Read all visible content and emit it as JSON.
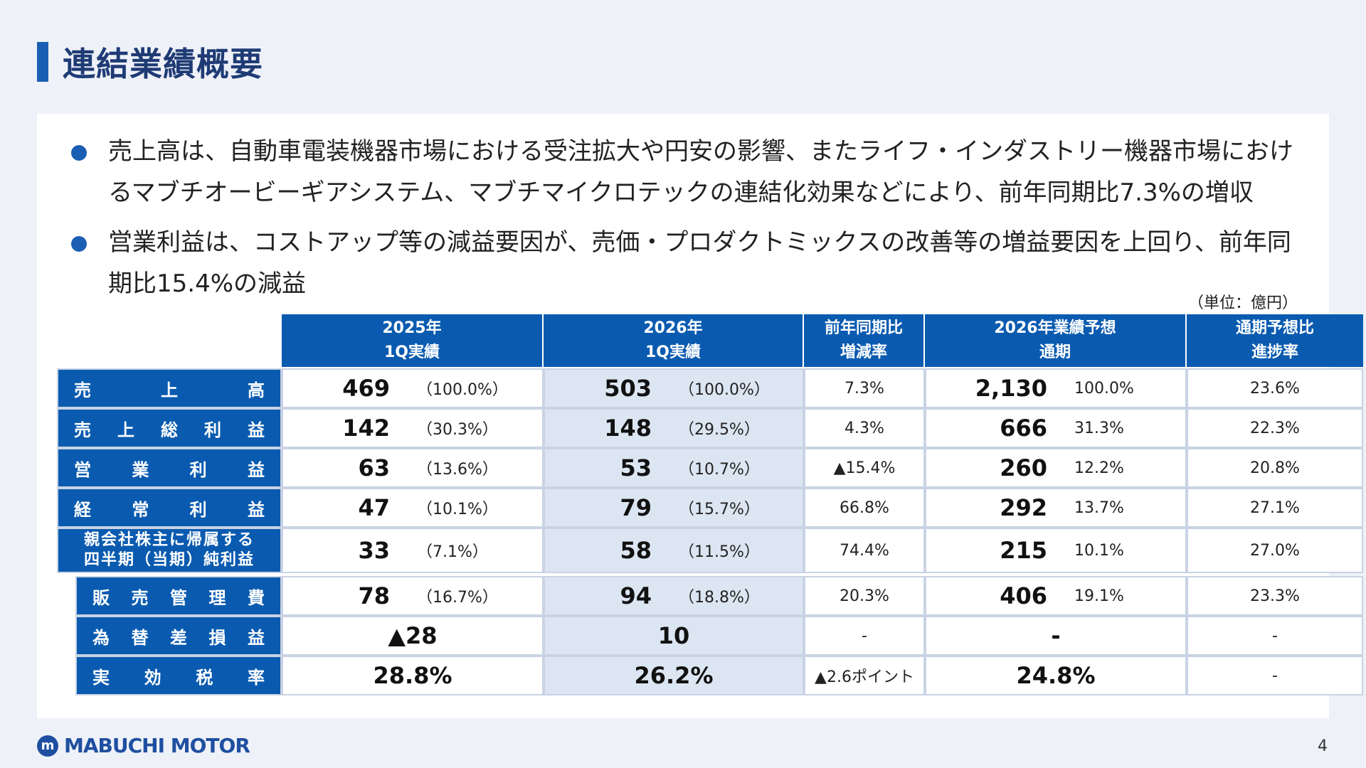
{
  "title": "連結業績概要",
  "bullets": [
    {
      "line1": "売上高は、自動車電装機器市場における受注拡大や円安の影響、またライフ・インダストリー機器市場におけ",
      "line2": "るマブチオービーギアシステム、マブチマイクロテックの連結化効果などにより、前年同期比7.3%の増収"
    },
    {
      "line1": "営業利益は、コストアップ等の減益要因が、売価・プロダクトミックスの改善等の増益要因を上回り、前年同",
      "line2": "期比15.4%の減益"
    }
  ],
  "unit": "（単位：億円）",
  "headers": [
    {
      "l1": "2025年",
      "l2": "1Q実績"
    },
    {
      "l1": "2026年",
      "l2": "1Q実績"
    },
    {
      "l1": "前年同期比",
      "l2": "増減率"
    },
    {
      "l1": "2026年業績予想",
      "l2": "通期"
    },
    {
      "l1": "通期予想比",
      "l2": "進捗率"
    }
  ],
  "rows": [
    {
      "label_chars": [
        "売",
        "上",
        "高"
      ],
      "v25": "469",
      "p25": "（100.0%）",
      "v26": "503",
      "p26": "（100.0%）",
      "yoy": "7.3%",
      "fc": "2,130",
      "fcp": "100.0%",
      "prog": "23.6%"
    },
    {
      "label_chars": [
        "売",
        "上",
        "総",
        "利",
        "益"
      ],
      "v25": "142",
      "p25": "（30.3%）",
      "v26": "148",
      "p26": "（29.5%）",
      "yoy": "4.3%",
      "fc": "666",
      "fcp": "31.3%",
      "prog": "22.3%"
    },
    {
      "label_chars": [
        "営",
        "業",
        "利",
        "益"
      ],
      "v25": "63",
      "p25": "（13.6%）",
      "v26": "53",
      "p26": "（10.7%）",
      "yoy": "▲15.4%",
      "fc": "260",
      "fcp": "12.2%",
      "prog": "20.8%"
    },
    {
      "label_chars": [
        "経",
        "常",
        "利",
        "益"
      ],
      "v25": "47",
      "p25": "（10.1%）",
      "v26": "79",
      "p26": "（15.7%）",
      "yoy": "66.8%",
      "fc": "292",
      "fcp": "13.7%",
      "prog": "27.1%"
    },
    {
      "label_l1": "親会社株主に帰属する",
      "label_l2": "四半期（当期）純利益",
      "v25": "33",
      "p25": "（7.1%）",
      "v26": "58",
      "p26": "（11.5%）",
      "yoy": "74.4%",
      "fc": "215",
      "fcp": "10.1%",
      "prog": "27.0%"
    }
  ],
  "rows2": [
    {
      "label_chars": [
        "販",
        "売",
        "管",
        "理",
        "費"
      ],
      "v25": "78",
      "p25": "（16.7%）",
      "v26": "94",
      "p26": "（18.8%）",
      "yoy": "20.3%",
      "fc": "406",
      "fcp": "19.1%",
      "prog": "23.3%"
    },
    {
      "label_chars": [
        "為",
        "替",
        "差",
        "損",
        "益"
      ],
      "v25": "▲28",
      "p25": "",
      "v26": "10",
      "p26": "",
      "yoy": "-",
      "fc": "-",
      "fcp": "",
      "prog": "-"
    },
    {
      "label_chars": [
        "実",
        "効",
        "税",
        "率"
      ],
      "v25": "28.8%",
      "p25": "",
      "v26": "26.2%",
      "p26": "",
      "yoy": "▲2.6ポイント",
      "fc": "24.8%",
      "fcp": "",
      "prog": "-"
    }
  ],
  "footer": {
    "logo_text": "MABUCHI MOTOR",
    "page": "4"
  },
  "colors": {
    "header_blue": "#0a5bb0",
    "title_navy": "#1f3b75",
    "shade": "#dce6f2"
  }
}
